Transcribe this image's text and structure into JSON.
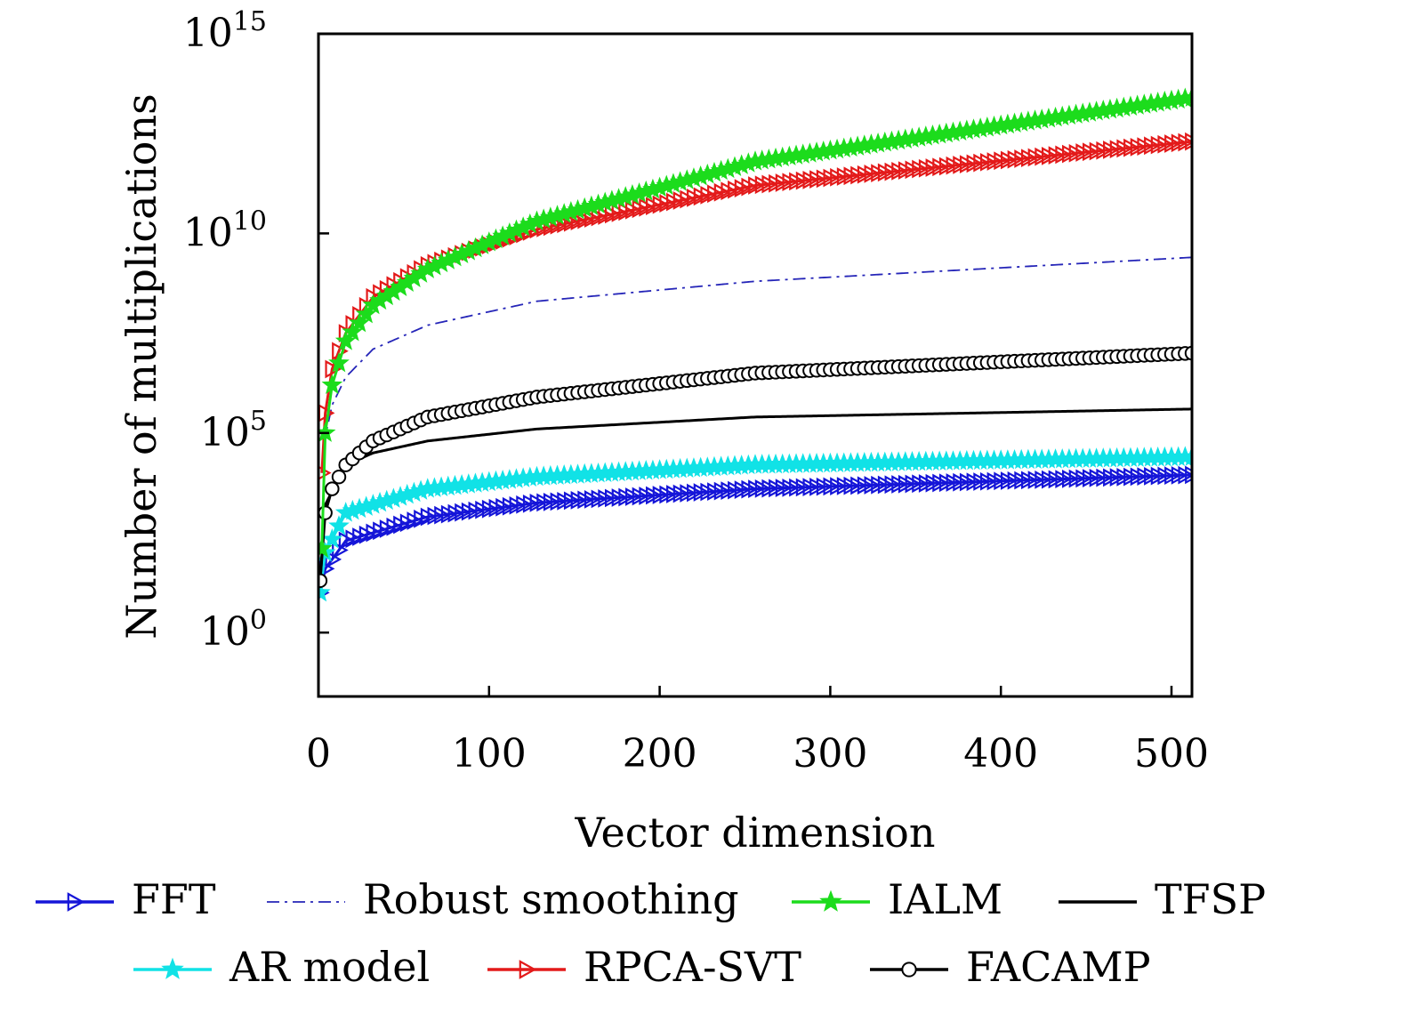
{
  "chart_data": {
    "type": "line",
    "title": "",
    "xlabel": "Vector dimension",
    "ylabel": "Number of multiplications",
    "xlim": [
      0,
      512
    ],
    "ylim_log10": [
      -1.6,
      15
    ],
    "yscale": "log",
    "x_ticks": [
      0,
      100,
      200,
      300,
      400,
      500
    ],
    "y_ticks": [
      {
        "base": "10",
        "exp": "0",
        "value_log10": 0
      },
      {
        "base": "10",
        "exp": "5",
        "value_log10": 5
      },
      {
        "base": "10",
        "exp": "10",
        "value_log10": 10
      },
      {
        "base": "10",
        "exp": "15",
        "value_log10": 15
      }
    ],
    "grid": false,
    "legend_position": "bottom",
    "series": [
      {
        "name": "FFT",
        "color": "#1515d8",
        "style": "solid",
        "marker": "triangle-right",
        "x": [
          1,
          4,
          16,
          64,
          128,
          256,
          512
        ],
        "y_log10": [
          1.0,
          1.6,
          2.3,
          2.9,
          3.25,
          3.6,
          3.95
        ]
      },
      {
        "name": "Robust smoothing",
        "color": "#2525b8",
        "style": "dashdot",
        "marker": "none",
        "x": [
          2,
          4,
          8,
          16,
          32,
          64,
          128,
          256,
          512
        ],
        "y_log10": [
          4.0,
          4.9,
          5.7,
          6.4,
          7.1,
          7.7,
          8.3,
          8.8,
          9.4
        ]
      },
      {
        "name": "IALM",
        "color": "#1cdc1c",
        "style": "solid",
        "marker": "star",
        "x": [
          2,
          4,
          8,
          16,
          32,
          64,
          128,
          256,
          512
        ],
        "y_log10": [
          2.1,
          5.0,
          6.2,
          7.3,
          8.2,
          9.1,
          10.3,
          11.8,
          13.4
        ]
      },
      {
        "name": "TFSP",
        "color": "#000000",
        "style": "solid",
        "marker": "none",
        "x": [
          1,
          4,
          16,
          32,
          64,
          128,
          256,
          512
        ],
        "y_log10": [
          1.3,
          3.2,
          4.2,
          4.5,
          4.8,
          5.1,
          5.4,
          5.6
        ]
      },
      {
        "name": "AR model",
        "color": "#11e2e6",
        "style": "solid",
        "marker": "star",
        "x": [
          1,
          4,
          16,
          64,
          128,
          256,
          512
        ],
        "y_log10": [
          1.0,
          2.0,
          3.0,
          3.6,
          3.9,
          4.2,
          4.4
        ]
      },
      {
        "name": "RPCA-SVT",
        "color": "#e31a1a",
        "style": "solid",
        "marker": "triangle-right",
        "x": [
          2,
          4,
          8,
          16,
          32,
          64,
          128,
          256,
          512
        ],
        "y_log10": [
          4.0,
          5.5,
          6.6,
          7.5,
          8.4,
          9.2,
          10.1,
          11.2,
          12.3
        ]
      },
      {
        "name": "FACAMP",
        "color": "#000000",
        "style": "solid",
        "marker": "circle",
        "x": [
          1,
          4,
          8,
          16,
          32,
          64,
          128,
          256,
          512
        ],
        "y_log10": [
          1.3,
          3.0,
          3.6,
          4.2,
          4.8,
          5.4,
          5.9,
          6.5,
          7.0
        ]
      }
    ],
    "legend_rows": [
      [
        "FFT",
        "Robust smoothing",
        "IALM",
        "TFSP"
      ],
      [
        "AR model",
        "RPCA-SVT",
        "FACAMP"
      ]
    ]
  }
}
